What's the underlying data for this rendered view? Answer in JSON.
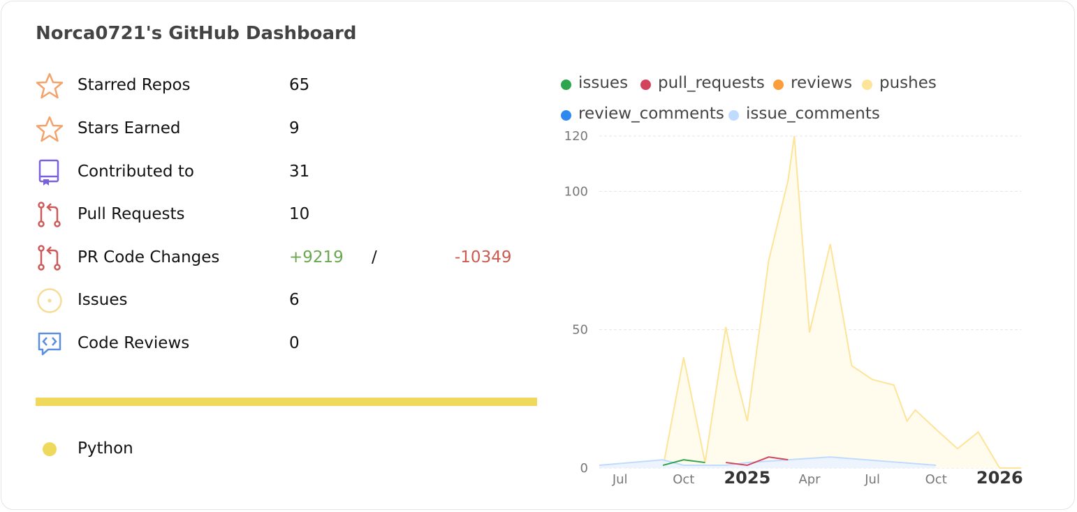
{
  "title": "Norca0721's GitHub Dashboard",
  "stats": [
    {
      "label": "Starred Repos",
      "value": "65",
      "icon": "star-icon"
    },
    {
      "label": "Stars Earned",
      "value": "9",
      "icon": "star-icon"
    },
    {
      "label": "Contributed to",
      "value": "31",
      "icon": "repo-icon"
    },
    {
      "label": "Pull Requests",
      "value": "10",
      "icon": "pull-request-icon"
    },
    {
      "label": "PR Code Changes",
      "additions": "+9219",
      "separator": "/",
      "deletions": "-10349",
      "icon": "pull-request-icon"
    },
    {
      "label": "Issues",
      "value": "6",
      "icon": "issue-icon"
    },
    {
      "label": "Code Reviews",
      "value": "0",
      "icon": "code-review-icon"
    }
  ],
  "languages": [
    {
      "name": "Python",
      "color": "#efd95d",
      "share": 1.0
    }
  ],
  "colors": {
    "star": "#f4a26b",
    "repo": "#7b61d9",
    "pull_request": "#cc5a5a",
    "issue": "#f6dc96",
    "code_review": "#5a8fe0",
    "additions": "#6aa84f",
    "deletions": "#cc5a4e"
  },
  "chart_data": {
    "type": "area",
    "legend": [
      {
        "name": "issues",
        "color": "#2da44e"
      },
      {
        "name": "pull_requests",
        "color": "#d2445d"
      },
      {
        "name": "reviews",
        "color": "#fb9d3b"
      },
      {
        "name": "pushes",
        "color": "#fde499"
      },
      {
        "name": "review_comments",
        "color": "#2f87f0"
      },
      {
        "name": "issue_comments",
        "color": "#bfdbfe"
      }
    ],
    "ylim": [
      0,
      120
    ],
    "yticks": [
      0,
      50,
      100,
      120
    ],
    "xticks": [
      {
        "label": "Jul",
        "x": "2024-07",
        "bold": false
      },
      {
        "label": "Oct",
        "x": "2024-10",
        "bold": false
      },
      {
        "label": "2025",
        "x": "2025-01",
        "bold": true
      },
      {
        "label": "Apr",
        "x": "2025-04",
        "bold": false
      },
      {
        "label": "Jul",
        "x": "2025-07",
        "bold": false
      },
      {
        "label": "Oct",
        "x": "2025-10",
        "bold": false
      },
      {
        "label": "2026",
        "x": "2026-01",
        "bold": true
      }
    ],
    "grid": true,
    "series": [
      {
        "name": "pushes",
        "color": "#fde499",
        "fill": "#fffbed",
        "x": [
          "2024-09",
          "2024-10",
          "2024-11",
          "2024-12",
          "2024-12-15",
          "2025-01",
          "2025-02",
          "2025-03",
          "2025-03-10",
          "2025-04",
          "2025-05",
          "2025-06",
          "2025-07",
          "2025-08",
          "2025-08-20",
          "2025-09",
          "2025-10",
          "2025-11",
          "2025-12",
          "2026-01",
          "2026-02"
        ],
        "y": [
          0,
          40,
          2,
          51,
          34,
          17,
          75,
          104,
          120,
          49,
          81,
          37,
          32,
          30,
          17,
          21,
          14,
          7,
          13,
          0,
          0
        ]
      },
      {
        "name": "issue_comments",
        "color": "#bfdbfe",
        "fill": "#eef4fd",
        "x": [
          "2024-06",
          "2024-09",
          "2024-10",
          "2024-12",
          "2025-01",
          "2025-05",
          "2025-10"
        ],
        "y": [
          1,
          3,
          1,
          1,
          2,
          4,
          1
        ]
      },
      {
        "name": "issues",
        "color": "#2da44e",
        "fill": null,
        "x": [
          "2024-09",
          "2024-10",
          "2024-11"
        ],
        "y": [
          1,
          3,
          2
        ]
      },
      {
        "name": "pull_requests",
        "color": "#d2445d",
        "fill": null,
        "x": [
          "2024-12",
          "2025-01",
          "2025-02",
          "2025-03"
        ],
        "y": [
          2,
          1,
          4,
          3
        ]
      }
    ]
  }
}
